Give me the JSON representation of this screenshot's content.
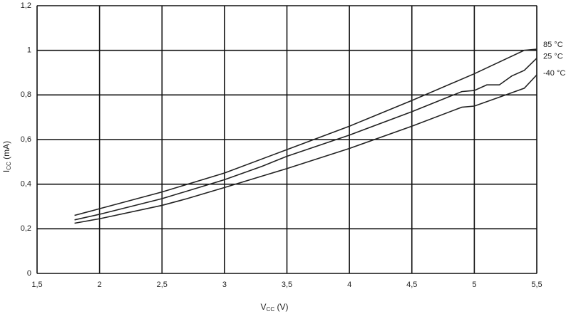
{
  "chart_data": {
    "type": "line",
    "xlabel": {
      "main": "V",
      "sub": "CC",
      "unit": " (V)"
    },
    "ylabel": {
      "main": "I",
      "sub": "CC",
      "unit": " (mA)"
    },
    "xlim": [
      1.5,
      5.5
    ],
    "ylim": [
      0,
      1.2
    ],
    "xticks": [
      {
        "value": 1.5,
        "label": "1,5"
      },
      2,
      {
        "value": 2.5,
        "label": "2,5"
      },
      3,
      {
        "value": 3.5,
        "label": "3,5"
      },
      4,
      {
        "value": 4.5,
        "label": "4,5"
      },
      5,
      {
        "value": 5.5,
        "label": "5,5"
      }
    ],
    "yticks": [
      0,
      {
        "value": 0.2,
        "label": "0,2"
      },
      {
        "value": 0.4,
        "label": "0,4"
      },
      {
        "value": 0.6,
        "label": "0,6"
      },
      {
        "value": 0.8,
        "label": "0,8"
      },
      1,
      {
        "value": 1.2,
        "label": "1,2"
      }
    ],
    "grid": true,
    "series": [
      {
        "name": "85 °C",
        "color": "#222222",
        "x": [
          1.8,
          2.0,
          2.5,
          3.0,
          3.5,
          4.0,
          4.5,
          5.0,
          5.4,
          5.5
        ],
        "values": [
          0.26,
          0.29,
          0.365,
          0.45,
          0.555,
          0.66,
          0.775,
          0.895,
          1.0,
          1.005
        ]
      },
      {
        "name": "25 °C",
        "color": "#222222",
        "x": [
          1.8,
          2.0,
          2.5,
          3.0,
          3.3,
          3.5,
          4.0,
          4.5,
          4.9,
          5.0,
          5.1,
          5.2,
          5.3,
          5.4,
          5.5
        ],
        "values": [
          0.24,
          0.265,
          0.335,
          0.42,
          0.48,
          0.525,
          0.62,
          0.725,
          0.815,
          0.82,
          0.845,
          0.845,
          0.885,
          0.91,
          0.965
        ]
      },
      {
        "name": "-40 °C",
        "color": "#222222",
        "x": [
          1.8,
          2.0,
          2.5,
          2.7,
          3.0,
          3.5,
          4.0,
          4.5,
          4.9,
          5.0,
          5.2,
          5.4,
          5.5
        ],
        "values": [
          0.225,
          0.245,
          0.305,
          0.335,
          0.385,
          0.47,
          0.56,
          0.66,
          0.745,
          0.75,
          0.79,
          0.83,
          0.89
        ]
      }
    ]
  }
}
